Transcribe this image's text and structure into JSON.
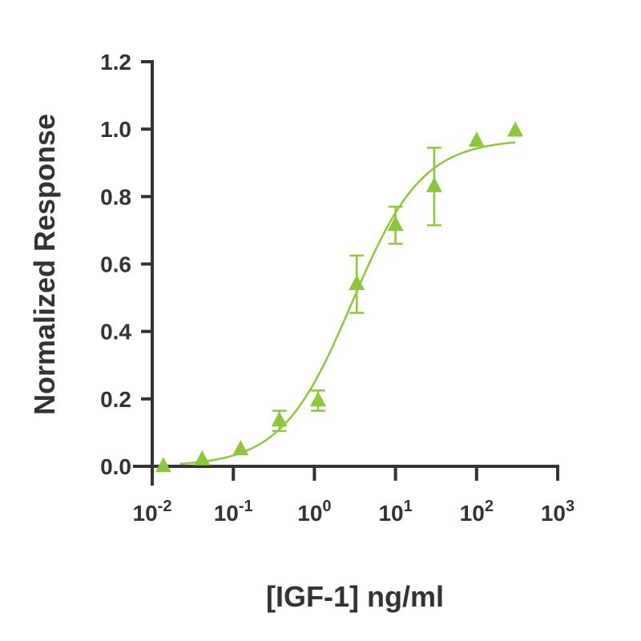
{
  "chart_data": {
    "type": "scatter",
    "title": "",
    "xlabel": "[IGF-1] ng/ml",
    "ylabel": "Normalized Response",
    "xscale": "log10",
    "xlim": [
      0.01,
      1000
    ],
    "ylim": [
      0,
      1.2
    ],
    "yticks": [
      0.0,
      0.2,
      0.4,
      0.6,
      0.8,
      1.0,
      1.2
    ],
    "ytick_labels": [
      "0.0",
      "0.2",
      "0.4",
      "0.6",
      "0.8",
      "1.0",
      "1.2"
    ],
    "xtick_exponents": [
      -2,
      -1,
      0,
      1,
      2,
      3
    ],
    "xtick_base": "10",
    "grid": false,
    "legend": null,
    "color": "#8dc63f",
    "series": [
      {
        "name": "IGF-1",
        "marker": "triangle",
        "x": [
          0.0137,
          0.0412,
          0.123,
          0.37,
          1.11,
          3.33,
          10.0,
          30.0,
          100,
          300
        ],
        "y": [
          0.0,
          0.02,
          0.05,
          0.135,
          0.195,
          0.54,
          0.715,
          0.83,
          0.965,
          0.995
        ],
        "y_err": [
          0.0,
          0.0,
          0.0,
          0.03,
          0.03,
          0.085,
          0.055,
          0.115,
          0.0,
          0.0
        ]
      }
    ],
    "fit": {
      "type": "4PL",
      "bottom": 0.0,
      "top": 0.97,
      "ec50": 2.9,
      "hill": 1.0,
      "x_range": [
        0.022,
        300
      ]
    }
  }
}
